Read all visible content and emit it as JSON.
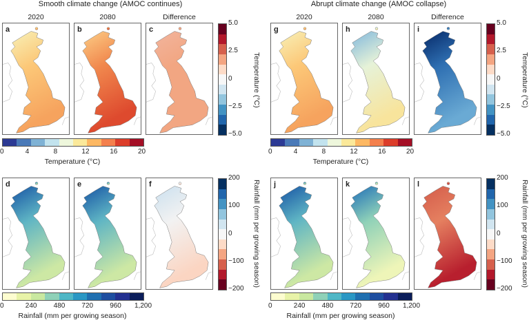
{
  "blocks": [
    {
      "title": "Smooth climate change (AMOC continues)",
      "columns": [
        "2020",
        "2080",
        "Difference"
      ],
      "temperature_panels": [
        {
          "label": "a",
          "fill": [
            "#f8ecb0",
            "#fcc878",
            "#f6a35e"
          ]
        },
        {
          "label": "b",
          "fill": [
            "#fbc680",
            "#f1894e",
            "#de4a2e"
          ]
        },
        {
          "label": "c",
          "fill": [
            "#f2b39a",
            "#f2a682",
            "#f2a682"
          ]
        }
      ],
      "rainfall_panels": [
        {
          "label": "d",
          "fill": [
            "#1f5fa8",
            "#5fb5c4",
            "#cde8a4"
          ]
        },
        {
          "label": "e",
          "fill": [
            "#1f5fa8",
            "#5fb5c4",
            "#cde8a4"
          ]
        },
        {
          "label": "f",
          "fill": [
            "#cfe2ef",
            "#f2f2f2",
            "#fbd5c2"
          ]
        }
      ]
    },
    {
      "title": "Abrupt climate change (AMOC collapse)",
      "columns": [
        "2020",
        "2080",
        "Difference"
      ],
      "temperature_panels": [
        {
          "label": "g",
          "fill": [
            "#f8ecb0",
            "#fcc878",
            "#f6a35e"
          ]
        },
        {
          "label": "h",
          "fill": [
            "#8cbedc",
            "#e6f2d8",
            "#f8e49c"
          ]
        },
        {
          "label": "i",
          "fill": [
            "#0b3170",
            "#2e6fb2",
            "#6aaad4"
          ]
        }
      ],
      "rainfall_panels": [
        {
          "label": "j",
          "fill": [
            "#1f5fa8",
            "#5fb5c4",
            "#cde8a4"
          ]
        },
        {
          "label": "k",
          "fill": [
            "#2c7ab8",
            "#8fd1b8",
            "#eef5b8"
          ]
        },
        {
          "label": "l",
          "fill": [
            "#d6604d",
            "#e58060",
            "#b81f2e"
          ]
        }
      ]
    }
  ],
  "colorbars": {
    "temperature": {
      "label": "Temperature (°C)",
      "ticks": [
        "0",
        "4",
        "8",
        "12",
        "16",
        "20"
      ],
      "colors": [
        "#2c3a94",
        "#4a7ab8",
        "#7fb2d5",
        "#c2e3ee",
        "#eef7dc",
        "#fbe99a",
        "#fdb863",
        "#f4804d",
        "#dc3d2a",
        "#a50f26"
      ]
    },
    "temperature_difference": {
      "label": "Temperature (°C)",
      "ticks": [
        "5.0",
        "2.5",
        "0",
        "−2.5",
        "−5.0"
      ],
      "colors": [
        "#67001f",
        "#b2182b",
        "#d6604d",
        "#f4a582",
        "#fddbc7",
        "#f7f7f7",
        "#d1e5f0",
        "#92c5de",
        "#4393c3",
        "#2166ac",
        "#053061"
      ]
    },
    "rainfall": {
      "label": "Rainfall (mm per growing season)",
      "ticks": [
        "0",
        "240",
        "480",
        "720",
        "960",
        "1,200"
      ],
      "colors": [
        "#fdfdd0",
        "#e8f3a8",
        "#c9e8a0",
        "#8fd1b8",
        "#4fb7c6",
        "#2a97c4",
        "#1f6fb0",
        "#1e4ea0",
        "#233090",
        "#0b1d5a"
      ]
    },
    "rainfall_difference": {
      "label": "Rainfall (mm per growing season)",
      "ticks": [
        "200",
        "100",
        "0",
        "−100",
        "−200"
      ],
      "colors": [
        "#053061",
        "#2166ac",
        "#4393c3",
        "#92c5de",
        "#d1e5f0",
        "#f7f7f7",
        "#fddbc7",
        "#f4a582",
        "#d6604d",
        "#b2182b",
        "#67001f"
      ]
    }
  }
}
